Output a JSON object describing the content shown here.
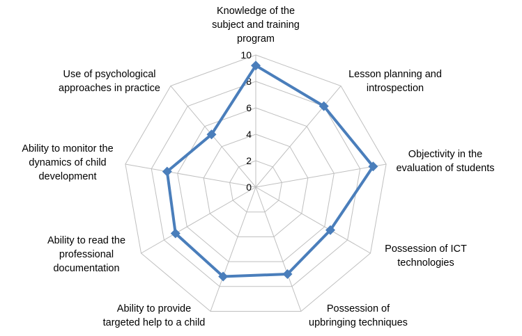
{
  "chart_data": {
    "type": "radar",
    "categories": [
      "Knowledge of the subject and training program",
      "Lesson planning and introspection",
      "Objectivity in the evaluation of students",
      "Possession of ICT technologies",
      "Possession of upbringing techniques",
      "Ability to provide targeted help to a child",
      "Ability to read the professional documentation",
      "Ability to monitor the dynamics of child development",
      "Use of psychological approaches in practice"
    ],
    "category_lines": [
      [
        "Knowledge of the",
        "subject and training",
        "program"
      ],
      [
        "Lesson planning and",
        "introspection"
      ],
      [
        "Objectivity in the",
        "evaluation of students"
      ],
      [
        "Possession of ICT",
        "technologies"
      ],
      [
        "Possession of",
        "upbringing techniques"
      ],
      [
        "Ability to provide",
        "targeted help to a child"
      ],
      [
        "Ability to read the",
        "professional",
        "documentation"
      ],
      [
        "Ability to monitor the",
        "dynamics of child",
        "development"
      ],
      [
        "Use of psychological",
        "approaches in practice"
      ]
    ],
    "series": [
      {
        "values": [
          9.2,
          8.0,
          9.0,
          6.5,
          7.0,
          7.2,
          7.0,
          6.8,
          5.2
        ]
      }
    ],
    "rlim": [
      0,
      10
    ],
    "ticks": [
      "0",
      "2",
      "4",
      "6",
      "8",
      "10"
    ],
    "grid": true,
    "legend": "none",
    "colors": {
      "series": "#4a7ebb",
      "grid": "#bfbfbf"
    }
  }
}
